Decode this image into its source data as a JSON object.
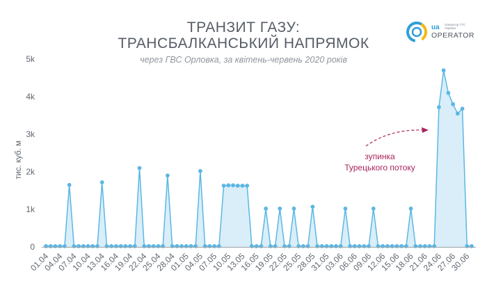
{
  "header": {
    "title_line1": "ТРАНЗИТ ГАЗУ:",
    "title_line2": "ТРАНСБАЛКАНСЬКИЙ НАПРЯМОК",
    "subtitle": "через ГВС Орловка, за квітень-червень 2020 років"
  },
  "logo": {
    "mark": "ua",
    "name": "OPERATOR",
    "small_text": "Оператор ГТС України",
    "icon": "gas-tso-ring-logo"
  },
  "chart_data": {
    "type": "area",
    "ylabel": "тис. куб. м",
    "ylim": [
      0,
      5500
    ],
    "yticks": [
      0,
      1000,
      2000,
      3000,
      4000,
      5000
    ],
    "ytick_labels": [
      "0",
      "1k",
      "2k",
      "3k",
      "4k",
      "5k"
    ],
    "x_tick_labels": [
      "01.04",
      "04.04",
      "07.04",
      "10.04",
      "13.04",
      "16.04",
      "19.04",
      "22.04",
      "25.04",
      "28.04",
      "01.05",
      "04.05",
      "07.05",
      "10.05",
      "13.05",
      "16.05",
      "19.05",
      "22.05",
      "25.05",
      "28.05",
      "31.05",
      "03.06",
      "06.06",
      "09.06",
      "12.06",
      "15.06",
      "18.06",
      "21.06",
      "24.06",
      "27.06",
      "30.06"
    ],
    "x_range": [
      "01.04",
      "30.06"
    ],
    "values": [
      20,
      20,
      20,
      20,
      20,
      1650,
      20,
      20,
      20,
      20,
      20,
      20,
      1720,
      20,
      20,
      20,
      20,
      20,
      20,
      20,
      2100,
      20,
      20,
      20,
      20,
      20,
      1900,
      20,
      20,
      20,
      20,
      20,
      20,
      2020,
      20,
      20,
      20,
      20,
      1630,
      1640,
      1640,
      1630,
      1630,
      1630,
      20,
      20,
      20,
      1020,
      20,
      20,
      1020,
      20,
      20,
      1020,
      20,
      20,
      20,
      1070,
      20,
      20,
      20,
      20,
      20,
      20,
      1020,
      20,
      20,
      20,
      20,
      20,
      1020,
      20,
      20,
      20,
      20,
      20,
      20,
      20,
      1020,
      20,
      20,
      20,
      20,
      20,
      3720,
      4700,
      4100,
      3800,
      3550,
      3680,
      20,
      20
    ],
    "annotation": {
      "line1": "зупинка",
      "line2": "Турецького потоку",
      "color": "#a8235a"
    },
    "colors": {
      "line": "#5bb7e3",
      "fill": "#d9eef9",
      "marker": "#5bb7e3"
    },
    "grid": false
  }
}
